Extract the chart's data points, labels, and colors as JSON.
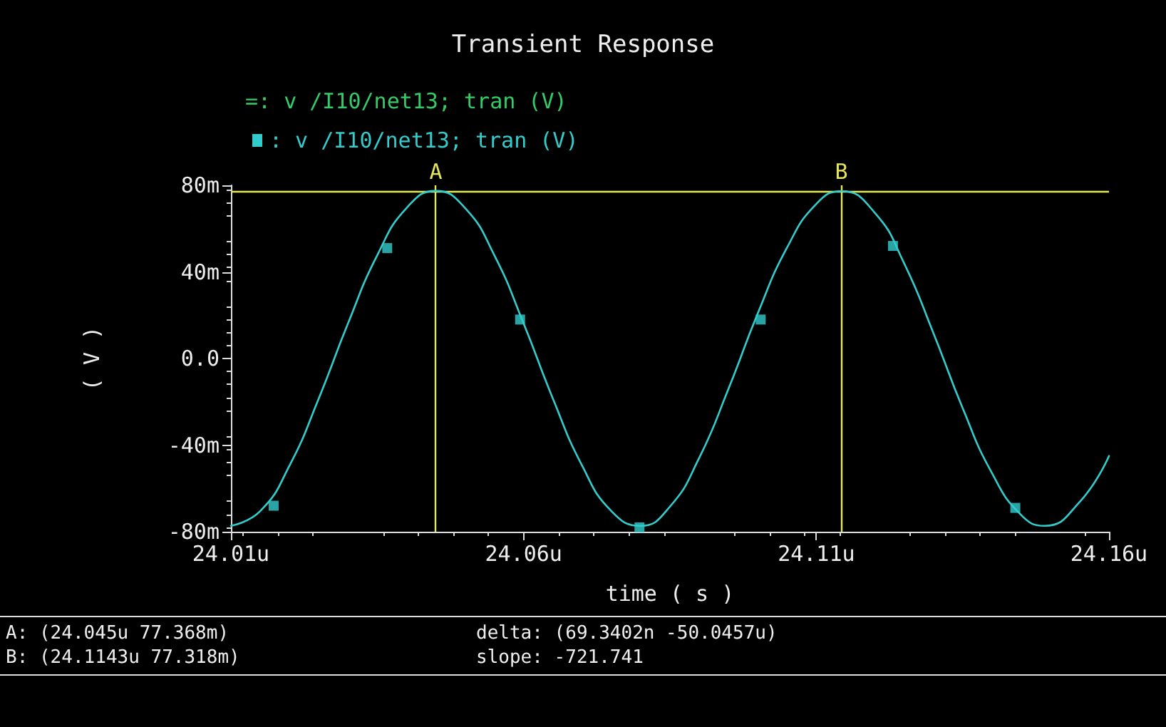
{
  "chart_data": {
    "type": "line",
    "title": "Transient Response",
    "xlabel": "time ( s )",
    "ylabel": "( V )",
    "annotations": [
      "=: v /I10/net13; tran (V)",
      "A: (24.045u 77.368m)",
      "delta: (69.3402n -50.0457u)",
      "B: (24.1143u 77.318m)",
      "slope: -721.741"
    ],
    "xlim": [
      24.01,
      24.16
    ],
    "xticks": [
      {
        "value": 24.01,
        "label": "24.01u"
      },
      {
        "value": 24.06,
        "label": "24.06u"
      },
      {
        "value": 24.11,
        "label": "24.11u"
      },
      {
        "value": 24.16,
        "label": "24.16u"
      }
    ],
    "ylim": [
      -80,
      80
    ],
    "yticks": [
      {
        "value": -80,
        "label": "-80m"
      },
      {
        "value": -40,
        "label": "-40m"
      },
      {
        "value": 0,
        "label": "0.0"
      },
      {
        "value": 40,
        "label": "40m"
      },
      {
        "value": 80,
        "label": "80m"
      }
    ],
    "grid": false,
    "legend": "top left",
    "marker": "none",
    "line_style": "solid",
    "series": [
      {
        "name": ": v /I10/net13; tran (V)",
        "color": "#33cccc",
        "x": [
          24.01,
          24.015,
          24.02,
          24.025,
          24.03,
          24.035,
          24.04,
          24.045,
          24.05,
          24.055,
          24.06,
          24.065,
          24.07,
          24.075,
          24.08,
          24.085,
          24.09,
          24.095,
          24.1,
          24.105,
          24.11,
          24.1143,
          24.12,
          24.125,
          24.13,
          24.135,
          24.14,
          24.145,
          24.149,
          24.155,
          24.16
        ],
        "values": [
          -77.3,
          -70.5,
          -49.5,
          -18.5,
          16.2,
          47.7,
          69.5,
          77.4,
          69.5,
          47.7,
          16.2,
          -18.5,
          -49.5,
          -70.5,
          -77.3,
          -68.4,
          -45.9,
          -14.0,
          20.8,
          51.2,
          71.4,
          77.3,
          67.3,
          44.0,
          11.8,
          -22.9,
          -52.9,
          -72.3,
          -77.3,
          -66.2,
          -45
        ]
      },
      {
        "type": "scatter",
        "marker": "square",
        "color": "#33cccc",
        "x": [
          24.0173,
          24.0367,
          24.0594,
          24.0798,
          24.1005,
          24.1231,
          24.144
        ],
        "values": [
          -68,
          51,
          18,
          -78,
          18,
          52,
          -69
        ]
      }
    ],
    "ref_lines": [
      {
        "axis": "x",
        "value": 24.045,
        "label": "A",
        "color": "#e6e65c"
      },
      {
        "axis": "x",
        "value": 24.1143,
        "label": "B",
        "color": "#e6e65c"
      },
      {
        "axis": "y",
        "value": 77.368,
        "label": null,
        "color": "#e6e65c"
      }
    ]
  }
}
